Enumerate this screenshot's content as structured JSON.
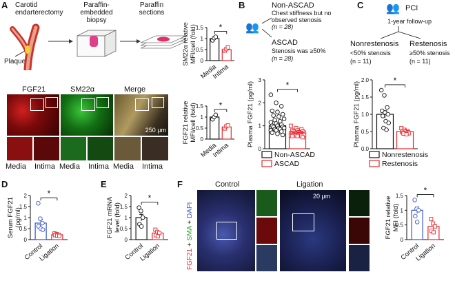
{
  "panels": {
    "A": "A",
    "B": "B",
    "C": "C",
    "D": "D",
    "E": "E",
    "F": "F"
  },
  "panelA": {
    "schematic": {
      "step1": "Carotid endarterectomy",
      "step2": "Paraffin-embedded biopsy",
      "step3": "Paraffin sections",
      "plaque": "Plaque"
    },
    "micro_headers": [
      "FGF21",
      "SM22α",
      "Merge"
    ],
    "micro_bottom": [
      "Media",
      "Intima",
      "Media",
      "Intima",
      "Media",
      "Intima"
    ],
    "scale": "250 μm"
  },
  "panelB": {
    "group1_title": "Non-ASCAD",
    "group1_desc": "Chest stiffness but no observed stenosis",
    "group1_n": "(n = 28)",
    "group2_title": "ASCAD",
    "group2_desc": "Stenosis was ≥50%",
    "group2_n": "(n = 28)",
    "legend": [
      "Non-ASCAD",
      "ASCAD"
    ]
  },
  "panelC": {
    "pci": "PCI",
    "followup": "1-year follow-up",
    "group1_title": "Nonrestenosis",
    "group1_desc": "<50% stenosis",
    "group1_n": "(n = 11)",
    "group2_title": "Restenosis",
    "group2_desc": "≥50% stenosis",
    "group2_n": "(n = 11)",
    "legend": [
      "Nonrestenosis",
      "Restenosis"
    ]
  },
  "panelF": {
    "ylab_parts": [
      "FGF21",
      "+",
      "SMA",
      "+",
      "DAPI"
    ],
    "titles": [
      "Control",
      "Ligation"
    ],
    "scale": "20 μm"
  },
  "colors": {
    "black": "#111111",
    "red": "#e8262c",
    "blue": "#3a56c8",
    "green": "#2aa02a"
  },
  "chart_data": [
    {
      "id": "A1",
      "type": "bar",
      "ylabel": "SM22α relative MFI/cell (fold)",
      "categories": [
        "Media",
        "Intima"
      ],
      "values": [
        1.0,
        0.5
      ],
      "ylim": [
        0,
        1.5
      ],
      "yticks": [
        0,
        0.5,
        1,
        1.5
      ],
      "points": [
        [
          0.92,
          1.02,
          1.08
        ],
        [
          0.45,
          0.52,
          0.6
        ]
      ],
      "significance": "*"
    },
    {
      "id": "A2",
      "type": "bar",
      "ylabel": "FGF21 relative MFI/cell (fold)",
      "categories": [
        "Media",
        "Intima"
      ],
      "values": [
        1.0,
        0.55
      ],
      "ylim": [
        0,
        1.5
      ],
      "yticks": [
        0,
        0.5,
        1,
        1.5
      ],
      "points": [
        [
          0.9,
          1.0,
          1.1
        ],
        [
          0.48,
          0.58,
          0.62
        ]
      ],
      "significance": "*"
    },
    {
      "id": "B",
      "type": "bar",
      "ylabel": "Plasma FGF21 (pg/ml)",
      "categories": [
        "Non-ASCAD",
        "ASCAD"
      ],
      "values": [
        1.0,
        0.7
      ],
      "ylim": [
        0,
        3
      ],
      "yticks": [
        0,
        1,
        2,
        3
      ],
      "significance": "*",
      "points": [
        [
          2.35,
          2.0,
          1.85,
          1.65,
          1.6,
          1.5,
          1.45,
          1.4,
          1.3,
          1.25,
          1.2,
          1.15,
          1.1,
          1.05,
          1.0,
          1.0,
          0.95,
          0.95,
          0.9,
          0.9,
          0.85,
          0.85,
          0.8,
          0.8,
          0.75,
          0.7,
          0.65,
          0.6
        ],
        [
          1.0,
          0.9,
          0.85,
          0.8,
          0.8,
          0.75,
          0.75,
          0.72,
          0.7,
          0.7,
          0.68,
          0.68,
          0.66,
          0.65,
          0.65,
          0.64,
          0.63,
          0.62,
          0.62,
          0.6,
          0.6,
          0.6,
          0.58,
          0.58,
          0.56,
          0.55,
          0.55,
          0.5
        ]
      ]
    },
    {
      "id": "C",
      "type": "bar",
      "ylabel": "Plasma FGF21 (pg/ml)",
      "categories": [
        "Nonrestenosis",
        "Restenosis"
      ],
      "values": [
        1.0,
        0.5
      ],
      "ylim": [
        0,
        2
      ],
      "yticks": [
        0,
        0.5,
        1.0,
        1.5,
        2.0
      ],
      "significance": "*",
      "points": [
        [
          1.7,
          1.55,
          1.2,
          1.1,
          1.05,
          1.0,
          0.95,
          0.8,
          0.75,
          0.6,
          0.55
        ],
        [
          0.6,
          0.55,
          0.52,
          0.5,
          0.5,
          0.48,
          0.47,
          0.46,
          0.45,
          0.44,
          0.42
        ]
      ]
    },
    {
      "id": "D",
      "type": "bar",
      "ylabel": "Serum FGF21 (pg/ml)",
      "categories": [
        "Control",
        "Ligation"
      ],
      "values": [
        0.75,
        0.22
      ],
      "ylim": [
        0,
        2
      ],
      "yticks": [
        0,
        0.5,
        1,
        1.5,
        2
      ],
      "significance": "*",
      "points": [
        [
          1.65,
          0.95,
          0.75,
          0.6,
          0.5,
          0.45
        ],
        [
          0.28,
          0.25,
          0.22,
          0.2,
          0.18,
          0.17
        ]
      ]
    },
    {
      "id": "E",
      "type": "bar",
      "ylabel": "FGF21 mRNA level (fold)",
      "categories": [
        "Control",
        "Ligation"
      ],
      "values": [
        1.0,
        0.3
      ],
      "ylim": [
        0,
        2
      ],
      "yticks": [
        0,
        0.5,
        1,
        1.5,
        2
      ],
      "significance": "*",
      "points": [
        [
          1.45,
          1.3,
          1.0,
          0.7,
          0.6
        ],
        [
          0.45,
          0.35,
          0.3,
          0.2,
          0.15
        ]
      ]
    },
    {
      "id": "F",
      "type": "bar",
      "ylabel": "FGF21 relative MFI (fold)",
      "categories": [
        "Control",
        "Ligation"
      ],
      "values": [
        1.0,
        0.45
      ],
      "ylim": [
        0,
        1.5
      ],
      "yticks": [
        0,
        0.5,
        1,
        1.5
      ],
      "significance": "*",
      "points": [
        [
          1.35,
          1.05,
          1.0,
          0.8,
          0.6
        ],
        [
          0.7,
          0.55,
          0.45,
          0.3,
          0.25
        ]
      ]
    }
  ]
}
